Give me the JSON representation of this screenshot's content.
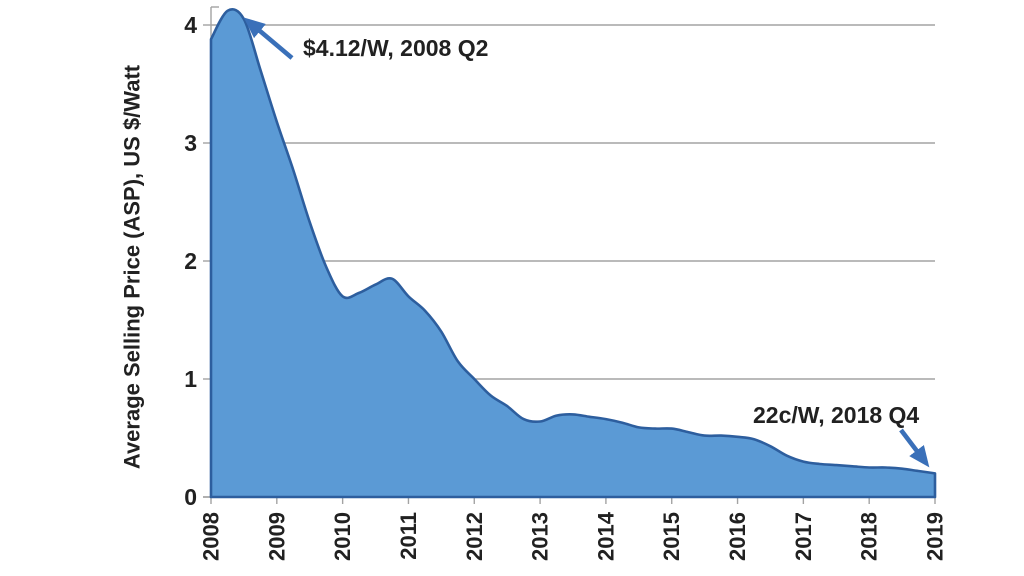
{
  "chart_data": {
    "type": "area",
    "title": "",
    "xlabel": "",
    "ylabel": "Average Selling Price (ASP),  US $/Watt",
    "x_tick_labels": [
      "2008",
      "2009",
      "2010",
      "2011",
      "2012",
      "2013",
      "2014",
      "2015",
      "2016",
      "2017",
      "2018",
      "2019"
    ],
    "y_ticks": [
      0,
      1,
      2,
      3,
      4
    ],
    "ylim": [
      0,
      4.15
    ],
    "grid": true,
    "legend": false,
    "series": [
      {
        "name": "Average Selling Price",
        "x_unit": "quarter",
        "x_start": "2008 Q1",
        "x_end": "2019 Q1",
        "quarters": [
          "2008 Q1",
          "2008 Q2",
          "2008 Q3",
          "2008 Q4",
          "2009 Q1",
          "2009 Q2",
          "2009 Q3",
          "2009 Q4",
          "2010 Q1",
          "2010 Q2",
          "2010 Q3",
          "2010 Q4",
          "2011 Q1",
          "2011 Q2",
          "2011 Q3",
          "2011 Q4",
          "2012 Q1",
          "2012 Q2",
          "2012 Q3",
          "2012 Q4",
          "2013 Q1",
          "2013 Q2",
          "2013 Q3",
          "2013 Q4",
          "2014 Q1",
          "2014 Q2",
          "2014 Q3",
          "2014 Q4",
          "2015 Q1",
          "2015 Q2",
          "2015 Q3",
          "2015 Q4",
          "2016 Q1",
          "2016 Q2",
          "2016 Q3",
          "2016 Q4",
          "2017 Q1",
          "2017 Q2",
          "2017 Q3",
          "2017 Q4",
          "2018 Q1",
          "2018 Q2",
          "2018 Q3",
          "2018 Q4",
          "2019 Q1"
        ],
        "values": [
          3.88,
          4.12,
          4.05,
          3.62,
          3.18,
          2.77,
          2.33,
          1.95,
          1.7,
          1.73,
          1.8,
          1.85,
          1.7,
          1.58,
          1.4,
          1.15,
          1.0,
          0.86,
          0.77,
          0.66,
          0.64,
          0.69,
          0.7,
          0.68,
          0.66,
          0.63,
          0.59,
          0.58,
          0.58,
          0.55,
          0.52,
          0.52,
          0.51,
          0.49,
          0.43,
          0.35,
          0.3,
          0.28,
          0.27,
          0.26,
          0.25,
          0.25,
          0.24,
          0.22,
          0.2
        ]
      }
    ],
    "annotations": [
      {
        "text": "$4.12/W, 2008 Q2",
        "target": "2008 Q2",
        "value": 4.12
      },
      {
        "text": "22c/W, 2018 Q4",
        "target": "2018 Q4",
        "value": 0.22
      }
    ],
    "colors": {
      "area_fill": "#5B9AD5",
      "area_stroke": "#2D5E9E",
      "arrow": "#3A70B9",
      "gridline": "#A3A3A3",
      "axis_line": "#A3A3A3",
      "text": "#212121"
    }
  }
}
